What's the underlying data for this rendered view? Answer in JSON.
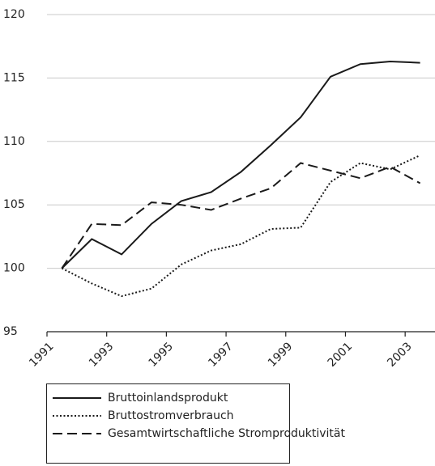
{
  "chart_data": {
    "type": "line",
    "categories": [
      "1991",
      null,
      "1993",
      null,
      "1995",
      null,
      "1997",
      null,
      "1999",
      null,
      "2001",
      null,
      "2003"
    ],
    "series": [
      {
        "name": "Bruttoinlandsprodukt",
        "color": "#1a1a1a",
        "dash": "solid",
        "values": [
          100,
          102.3,
          101.1,
          103.5,
          105.3,
          106.0,
          107.6,
          109.7,
          111.9,
          115.1,
          116.1,
          116.3,
          116.2
        ]
      },
      {
        "name": "Bruttostromverbrauch",
        "color": "#1a1a1a",
        "dash": "dotted",
        "values": [
          100,
          98.8,
          97.8,
          98.4,
          100.3,
          101.4,
          101.9,
          103.1,
          103.2,
          106.8,
          108.3,
          107.8,
          108.9
        ]
      },
      {
        "name": "Gesamtwirtschaftliche Stromproduktivität",
        "color": "#1a1a1a",
        "dash": "dashed",
        "values": [
          100,
          103.5,
          103.4,
          105.2,
          105.0,
          104.6,
          105.5,
          106.3,
          108.3,
          107.7,
          107.1,
          108.0,
          106.7
        ]
      }
    ],
    "ylim": [
      95,
      120
    ],
    "yticks": [
      95,
      100,
      105,
      110,
      115,
      120
    ],
    "grid": true
  }
}
